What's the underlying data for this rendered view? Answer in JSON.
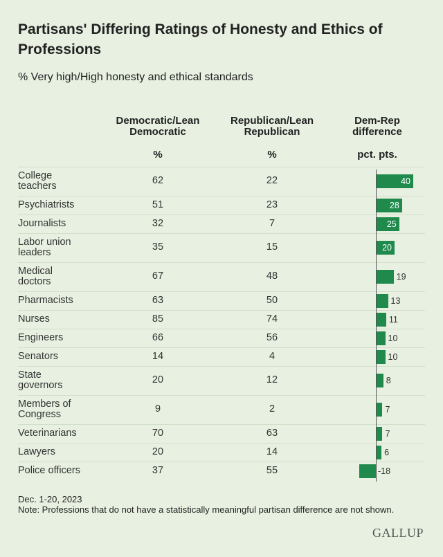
{
  "title": "Partisans' Differing Ratings of Honesty and Ethics of Professions",
  "subtitle": "% Very high/High honesty and ethical standards",
  "columns": [
    {
      "header": "Democratic/Lean\nDemocratic",
      "unit": "%"
    },
    {
      "header": "Republican/Lean\nRepublican",
      "unit": "%"
    },
    {
      "header": "Dem-Rep\ndifference",
      "unit": "pct. pts."
    }
  ],
  "rows": [
    {
      "name": "College\nteachers",
      "values": [
        62,
        22,
        40
      ]
    },
    {
      "name": "Psychiatrists",
      "values": [
        51,
        23,
        28
      ]
    },
    {
      "name": "Journalists",
      "values": [
        32,
        7,
        25
      ]
    },
    {
      "name": "Labor union\nleaders",
      "values": [
        35,
        15,
        20
      ]
    },
    {
      "name": "Medical\ndoctors",
      "values": [
        67,
        48,
        19
      ]
    },
    {
      "name": "Pharmacists",
      "values": [
        63,
        50,
        13
      ]
    },
    {
      "name": "Nurses",
      "values": [
        85,
        74,
        11
      ]
    },
    {
      "name": "Engineers",
      "values": [
        66,
        56,
        10
      ]
    },
    {
      "name": "Senators",
      "values": [
        14,
        4,
        10
      ]
    },
    {
      "name": "State\ngovernors",
      "values": [
        20,
        12,
        8
      ]
    },
    {
      "name": "Members of\nCongress",
      "values": [
        9,
        2,
        7
      ]
    },
    {
      "name": "Veterinarians",
      "values": [
        70,
        63,
        7
      ]
    },
    {
      "name": "Lawyers",
      "values": [
        20,
        14,
        6
      ]
    },
    {
      "name": "Police officers",
      "values": [
        37,
        55,
        -18
      ]
    }
  ],
  "bar_color": "#1f8a4c",
  "date": "Dec. 1-20, 2023",
  "note": "Note: Professions that do not have a statistically meaningful partisan difference are not shown.",
  "source": "GALLUP"
}
